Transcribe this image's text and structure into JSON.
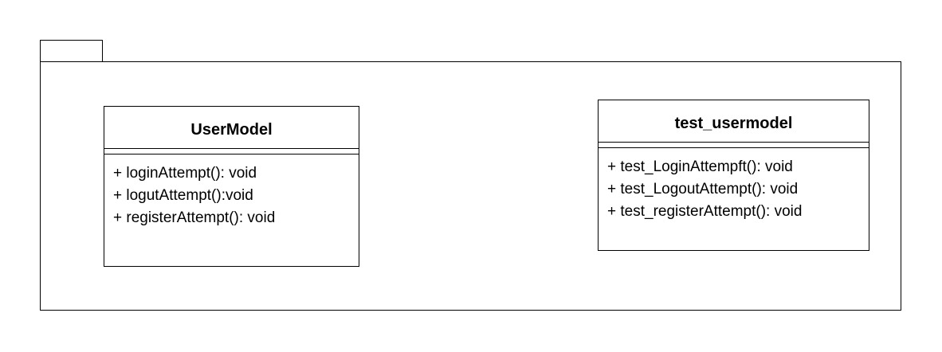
{
  "package": {
    "name": ""
  },
  "classes": {
    "user_model": {
      "name": "UserModel",
      "methods": [
        "+ loginAttempt(): void",
        "+ logutAttempt():void",
        "+ registerAttempt(): void"
      ]
    },
    "test_usermodel": {
      "name": "test_usermodel",
      "methods": [
        "+ test_LoginAttempft(): void",
        "+ test_LogoutAttempt(): void",
        "+ test_registerAttempt(): void"
      ]
    }
  }
}
